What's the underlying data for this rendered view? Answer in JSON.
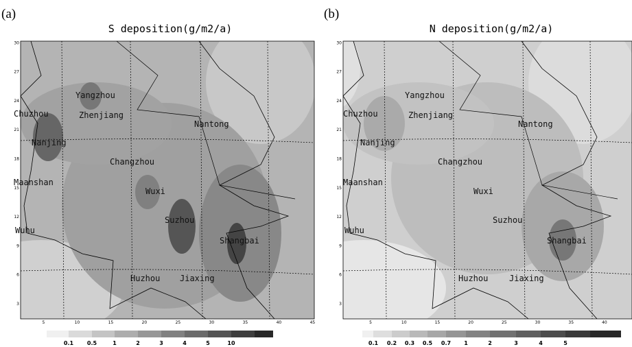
{
  "panels": [
    {
      "label": "(a)",
      "title": "S deposition(g/m2/a)",
      "yticks": [
        "3",
        "6",
        "9",
        "12",
        "15",
        "18",
        "21",
        "24",
        "27",
        "30"
      ],
      "xticks": [
        "5",
        "10",
        "15",
        "20",
        "25",
        "30",
        "35",
        "40",
        "45"
      ],
      "cities": [
        "Chuzhou",
        "Yangzhou",
        "Zhenjiang",
        "Nanjing",
        "Nantong",
        "Changzhou",
        "Maanshan",
        "Wuxi",
        "Suzhou",
        "Wuhu",
        "Shangbai",
        "Huzhou",
        "Jiaxing"
      ],
      "legend": [
        "0.1",
        "0.5",
        "1",
        "2",
        "3",
        "4",
        "5",
        "10"
      ]
    },
    {
      "label": "(b)",
      "title": "N deposition(g/m2/a)",
      "yticks": [
        "3",
        "6",
        "9",
        "12",
        "15",
        "18",
        "21",
        "24",
        "27",
        "30"
      ],
      "xticks": [
        "5",
        "10",
        "15",
        "20",
        "25",
        "30",
        "35",
        "40"
      ],
      "cities": [
        "Chuzhou",
        "Yangzhou",
        "Zhenjiang",
        "Nanjing",
        "Nantong",
        "Changzhou",
        "Maanshan",
        "Wuxi",
        "Suzhou",
        "Wuhu",
        "Shangbai",
        "Huzhou",
        "Jiaxing"
      ],
      "legend": [
        "0.1",
        "0.2",
        "0.3",
        "0.5",
        "0.7",
        "1",
        "2",
        "3",
        "4",
        "5"
      ]
    }
  ]
}
